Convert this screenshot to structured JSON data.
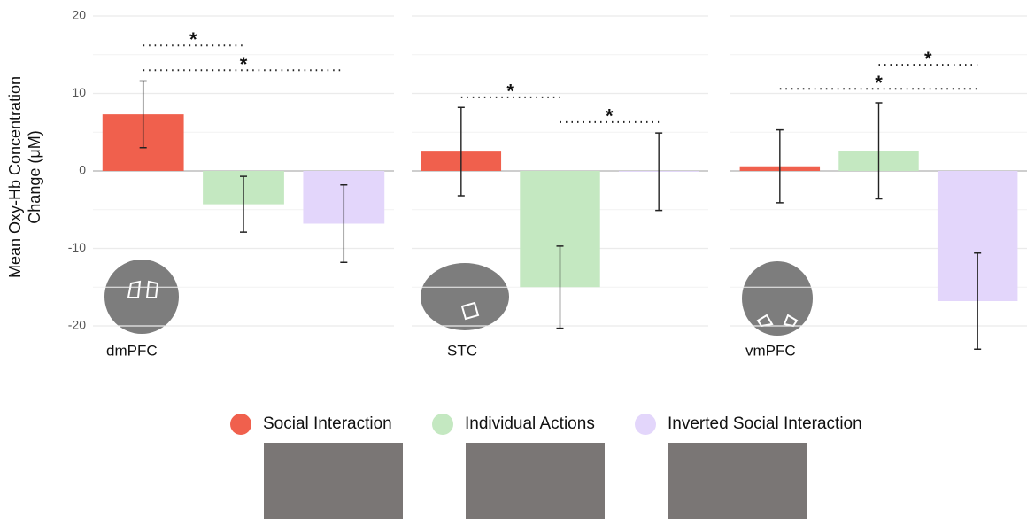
{
  "chart_data": {
    "type": "bar",
    "ylabel": [
      "Mean Oxy-Hb Concentration",
      "Change (μM)"
    ],
    "categories": [
      "dmPFC",
      "STC",
      "vmPFC"
    ],
    "series": [
      {
        "name": "Social Interaction",
        "color": "#f0604d",
        "values": [
          7.3,
          2.5,
          0.6
        ],
        "errors": [
          4.3,
          5.7,
          4.7
        ]
      },
      {
        "name": "Individual Actions",
        "color": "#c4e8c1",
        "values": [
          -4.3,
          -15,
          2.6
        ],
        "errors": [
          3.6,
          5.3,
          6.2
        ]
      },
      {
        "name": "Inverted Social Interaction",
        "color": "#e3d6fb",
        "values": [
          -6.8,
          -0.1,
          -16.8
        ],
        "errors": [
          5.0,
          5.0,
          6.2
        ]
      }
    ],
    "ylim": [
      -24.8,
      20.8
    ],
    "yticks": [
      -20,
      -10,
      0,
      10,
      20
    ],
    "yminor": [
      -15,
      -5,
      5,
      15
    ],
    "grid": true,
    "legend": "bottom",
    "annotations": [
      {
        "panel": 0,
        "from": 0,
        "to": 1,
        "y": 16.2,
        "label": "*"
      },
      {
        "panel": 0,
        "from": 0,
        "to": 2,
        "y": 13,
        "label": "*"
      },
      {
        "panel": 1,
        "from": 0,
        "to": 1,
        "y": 9.5,
        "label": "*"
      },
      {
        "panel": 1,
        "from": 1,
        "to": 2,
        "y": 6.3,
        "label": "*"
      },
      {
        "panel": 2,
        "from": 1,
        "to": 2,
        "y": 13.7,
        "label": "*"
      },
      {
        "panel": 2,
        "from": 0,
        "to": 2,
        "y": 10.6,
        "label": "*"
      }
    ]
  }
}
